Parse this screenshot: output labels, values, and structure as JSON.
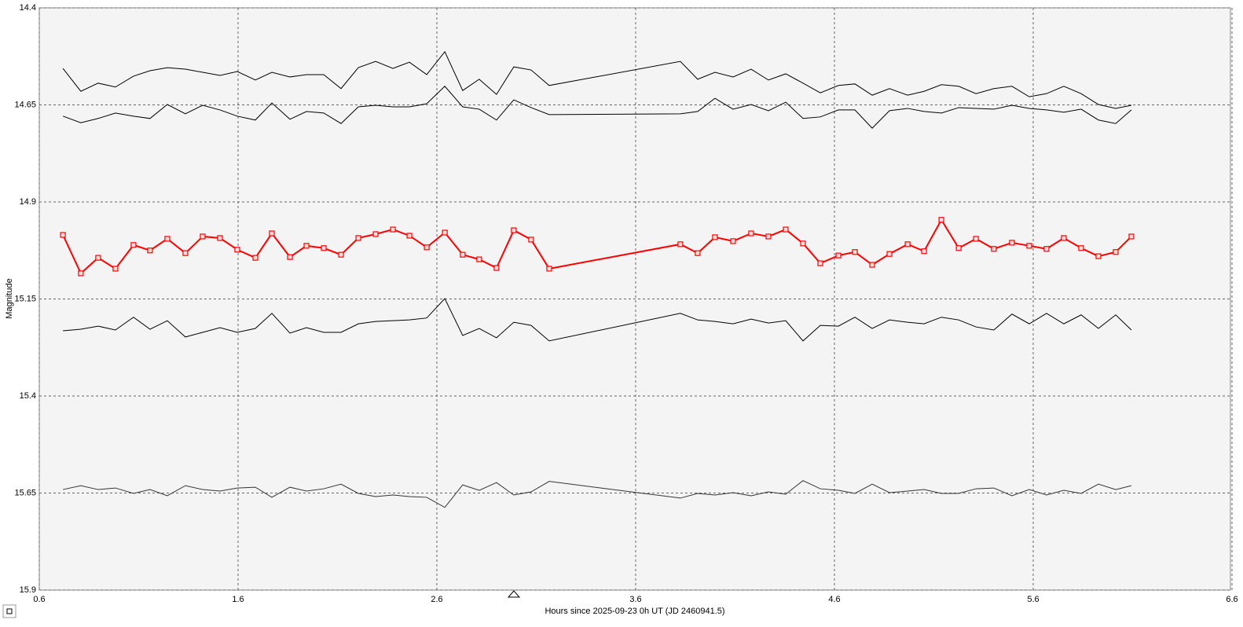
{
  "chart_data": {
    "type": "line",
    "x_label": "Hours since 2025-09-23 0h UT (JD 2460941.5)",
    "y_label": "Magnitude",
    "xlim": [
      0.6,
      6.6
    ],
    "xticks": [
      0.6,
      1.6,
      2.6,
      3.6,
      4.6,
      5.6,
      6.6
    ],
    "ylim": [
      14.4,
      15.9
    ],
    "yticks": [
      14.4,
      14.65,
      14.9,
      15.15,
      15.4,
      15.65,
      15.9
    ],
    "y_inverted": true,
    "grid": true,
    "x": [
      0.719,
      0.809,
      0.896,
      0.983,
      1.074,
      1.157,
      1.244,
      1.335,
      1.422,
      1.509,
      1.596,
      1.687,
      1.77,
      1.861,
      1.944,
      2.031,
      2.118,
      2.205,
      2.292,
      2.379,
      2.462,
      2.549,
      2.64,
      2.73,
      2.813,
      2.9,
      2.987,
      3.074,
      3.165,
      3.825,
      3.912,
      3.999,
      4.09,
      4.181,
      4.268,
      4.355,
      4.442,
      4.529,
      4.62,
      4.703,
      4.79,
      4.877,
      4.968,
      5.051,
      5.138,
      5.225,
      5.312,
      5.402,
      5.493,
      5.58,
      5.667,
      5.754,
      5.841,
      5.928,
      6.015,
      6.094
    ],
    "series": [
      {
        "color": "#000000",
        "markers": false,
        "values": [
          14.556,
          14.615,
          14.594,
          14.604,
          14.576,
          14.562,
          14.554,
          14.558,
          14.566,
          14.574,
          14.564,
          14.586,
          14.566,
          14.578,
          14.572,
          14.572,
          14.608,
          14.554,
          14.538,
          14.556,
          14.54,
          14.572,
          14.513,
          14.613,
          14.584,
          14.623,
          14.552,
          14.56,
          14.6,
          14.538,
          14.584,
          14.566,
          14.578,
          14.558,
          14.586,
          14.57,
          14.594,
          14.619,
          14.6,
          14.596,
          14.625,
          14.608,
          14.625,
          14.615,
          14.598,
          14.602,
          14.621,
          14.608,
          14.602,
          14.629,
          14.621,
          14.602,
          14.621,
          14.649,
          14.659,
          14.651
        ]
      },
      {
        "color": "#000000",
        "markers": false,
        "values": [
          14.679,
          14.696,
          14.685,
          14.671,
          14.679,
          14.685,
          14.649,
          14.673,
          14.651,
          14.663,
          14.679,
          14.689,
          14.645,
          14.687,
          14.667,
          14.671,
          14.698,
          14.655,
          14.651,
          14.655,
          14.655,
          14.647,
          14.602,
          14.655,
          14.661,
          14.689,
          14.637,
          14.657,
          14.675,
          14.673,
          14.667,
          14.633,
          14.661,
          14.649,
          14.665,
          14.643,
          14.685,
          14.681,
          14.663,
          14.663,
          14.71,
          14.665,
          14.659,
          14.667,
          14.671,
          14.657,
          14.659,
          14.661,
          14.651,
          14.659,
          14.663,
          14.669,
          14.661,
          14.689,
          14.698,
          14.663
        ]
      },
      {
        "color": "#ff0000",
        "markers": true,
        "values": [
          14.985,
          15.084,
          15.044,
          15.072,
          15.011,
          15.025,
          14.995,
          15.032,
          14.989,
          14.993,
          15.023,
          15.044,
          14.981,
          15.042,
          15.013,
          15.019,
          15.036,
          14.993,
          14.983,
          14.971,
          14.987,
          15.017,
          14.979,
          15.036,
          15.048,
          15.07,
          14.973,
          14.997,
          15.072,
          15.009,
          15.032,
          14.991,
          15.001,
          14.981,
          14.989,
          14.971,
          15.007,
          15.058,
          15.038,
          15.029,
          15.062,
          15.034,
          15.009,
          15.027,
          14.946,
          15.019,
          14.995,
          15.021,
          15.005,
          15.013,
          15.021,
          14.993,
          15.019,
          15.04,
          15.029,
          14.989
        ]
      },
      {
        "color": "#000000",
        "markers": false,
        "values": [
          15.232,
          15.228,
          15.22,
          15.23,
          15.197,
          15.228,
          15.206,
          15.248,
          15.236,
          15.224,
          15.236,
          15.226,
          15.187,
          15.238,
          15.224,
          15.236,
          15.236,
          15.214,
          15.208,
          15.206,
          15.204,
          15.199,
          15.149,
          15.244,
          15.226,
          15.25,
          15.21,
          15.218,
          15.258,
          15.187,
          15.204,
          15.208,
          15.214,
          15.202,
          15.212,
          15.206,
          15.258,
          15.218,
          15.22,
          15.197,
          15.226,
          15.204,
          15.21,
          15.214,
          15.197,
          15.204,
          15.222,
          15.23,
          15.189,
          15.214,
          15.187,
          15.214,
          15.191,
          15.226,
          15.191,
          15.23
        ]
      },
      {
        "color": "#333333",
        "markers": false,
        "values": [
          15.641,
          15.631,
          15.641,
          15.637,
          15.651,
          15.641,
          15.657,
          15.631,
          15.641,
          15.645,
          15.637,
          15.635,
          15.661,
          15.635,
          15.645,
          15.639,
          15.627,
          15.651,
          15.659,
          15.655,
          15.659,
          15.661,
          15.687,
          15.629,
          15.643,
          15.623,
          15.655,
          15.647,
          15.62,
          15.663,
          15.651,
          15.655,
          15.649,
          15.657,
          15.647,
          15.653,
          15.618,
          15.639,
          15.643,
          15.651,
          15.627,
          15.649,
          15.645,
          15.641,
          15.651,
          15.651,
          15.639,
          15.637,
          15.657,
          15.641,
          15.655,
          15.643,
          15.651,
          15.627,
          15.641,
          15.631
        ]
      }
    ]
  }
}
